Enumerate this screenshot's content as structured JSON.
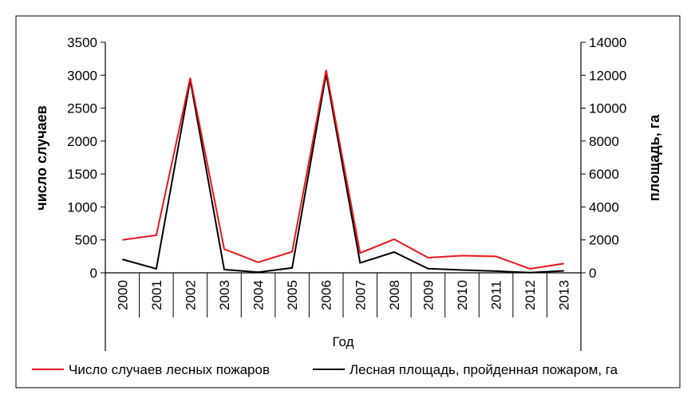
{
  "chart_data": {
    "type": "line",
    "categories": [
      "2000",
      "2001",
      "2002",
      "2003",
      "2004",
      "2005",
      "2006",
      "2007",
      "2008",
      "2009",
      "2010",
      "2011",
      "2012",
      "2013"
    ],
    "series": [
      {
        "name": "Число случаев лесных пожаров",
        "axis": "left",
        "color": "#e8171b",
        "values": [
          500,
          570,
          2960,
          360,
          160,
          320,
          3080,
          300,
          510,
          230,
          260,
          250,
          60,
          140
        ]
      },
      {
        "name": "Лесная площадь, пройденная пожаром, га",
        "axis": "right",
        "color": "#000000",
        "values": [
          820,
          240,
          11700,
          200,
          40,
          300,
          12080,
          600,
          1260,
          250,
          170,
          100,
          10,
          120
        ]
      }
    ],
    "xlabel": "Год",
    "ylabel_left": "число случаев",
    "ylabel_right": "площадь, га",
    "ylim_left": [
      0,
      3500
    ],
    "yticks_left": [
      "0",
      "500",
      "1000",
      "1500",
      "2000",
      "2500",
      "3000",
      "3500"
    ],
    "ylim_right": [
      0,
      14000
    ],
    "yticks_right": [
      "0",
      "2000",
      "4000",
      "6000",
      "8000",
      "10000",
      "12000",
      "14000"
    ],
    "grid": false,
    "legend_position": "bottom"
  }
}
